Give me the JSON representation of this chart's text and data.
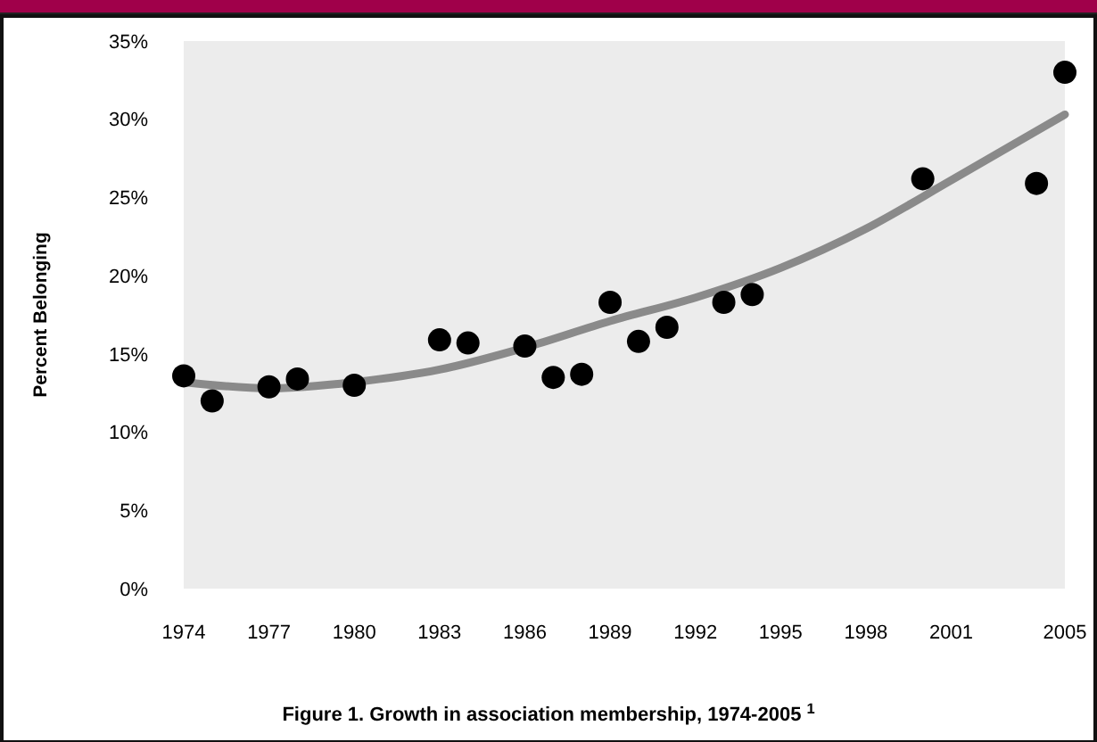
{
  "chart_data": {
    "type": "scatter",
    "title": "Figure 1. Growth in association membership, 1974-2005$^{1}$",
    "ylabel": "Percent Belonging",
    "xlim": [
      1974,
      2005
    ],
    "ylim": [
      0,
      35
    ],
    "xticks": [
      1974,
      1977,
      1980,
      1983,
      1986,
      1989,
      1992,
      1995,
      1998,
      2001,
      2005
    ],
    "yticks": [
      {
        "value": 0,
        "label": "0%"
      },
      {
        "value": 5,
        "label": "5%"
      },
      {
        "value": 10,
        "label": "10%"
      },
      {
        "value": 15,
        "label": "15%"
      },
      {
        "value": 20,
        "label": "20%"
      },
      {
        "value": 25,
        "label": "25%"
      },
      {
        "value": 30,
        "label": "30%"
      },
      {
        "value": 35,
        "label": "35%"
      }
    ],
    "grid": false,
    "marker": "circle",
    "series": [
      {
        "type": "line",
        "marker": "none",
        "color": "#8a8a8a",
        "x": [
          1974,
          1977,
          1980,
          1983,
          1986,
          1989,
          1992,
          1995,
          1998,
          2001,
          2005
        ],
        "values": [
          13.2,
          12.8,
          13.2,
          14.0,
          15.4,
          17.1,
          18.6,
          20.5,
          23.0,
          26.1,
          30.3
        ]
      },
      {
        "color": "#000000",
        "x": [
          1974,
          1975,
          1977,
          1978,
          1980,
          1983,
          1984,
          1986,
          1987,
          1988,
          1989,
          1990,
          1991,
          1993,
          1994,
          2000,
          2004,
          2005
        ],
        "values": [
          13.6,
          12.0,
          12.9,
          13.4,
          13.0,
          15.9,
          15.7,
          15.5,
          13.5,
          13.7,
          18.3,
          15.8,
          16.7,
          18.3,
          18.8,
          26.2,
          25.9,
          33.0
        ]
      }
    ]
  }
}
